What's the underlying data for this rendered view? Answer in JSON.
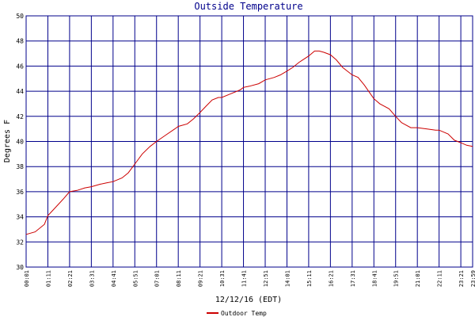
{
  "chart_data": {
    "type": "line",
    "title": "Outside Temperature",
    "xlabel": "12/12/16 (EDT)",
    "ylabel": "Degrees F",
    "ylim": [
      30,
      50
    ],
    "yticks": [
      30,
      32,
      34,
      36,
      38,
      40,
      42,
      44,
      46,
      48,
      50
    ],
    "xlim": [
      "00:01",
      "23:59"
    ],
    "xticks": [
      "00:01",
      "01:11",
      "02:21",
      "03:31",
      "04:41",
      "05:51",
      "07:01",
      "08:11",
      "09:21",
      "10:31",
      "11:41",
      "12:51",
      "14:01",
      "15:11",
      "16:21",
      "17:31",
      "18:41",
      "19:51",
      "21:01",
      "22:11",
      "23:21",
      "23:59"
    ],
    "grid": true,
    "legend": "bottom-center",
    "colors": {
      "grid": "#00008b",
      "series": "#cc0000",
      "title": "#00008b"
    },
    "series": [
      {
        "name": "Outdoor Temp",
        "x": [
          "00:01",
          "00:30",
          "01:00",
          "01:11",
          "01:30",
          "02:00",
          "02:21",
          "02:45",
          "03:10",
          "03:31",
          "04:00",
          "04:20",
          "04:41",
          "05:10",
          "05:30",
          "05:51",
          "06:15",
          "06:40",
          "07:01",
          "07:30",
          "08:00",
          "08:11",
          "08:40",
          "09:00",
          "09:21",
          "09:40",
          "10:00",
          "10:20",
          "10:31",
          "11:00",
          "11:30",
          "11:41",
          "12:00",
          "12:30",
          "12:51",
          "13:20",
          "13:40",
          "14:01",
          "14:20",
          "14:40",
          "15:11",
          "15:30",
          "15:45",
          "16:00",
          "16:21",
          "16:40",
          "17:00",
          "17:31",
          "17:50",
          "18:10",
          "18:41",
          "19:00",
          "19:30",
          "19:51",
          "20:10",
          "20:40",
          "21:01",
          "21:30",
          "22:00",
          "22:11",
          "22:40",
          "23:00",
          "23:21",
          "23:40",
          "23:59"
        ],
        "values": [
          32.6,
          32.8,
          33.4,
          34.1,
          34.6,
          35.4,
          36.0,
          36.1,
          36.3,
          36.4,
          36.6,
          36.7,
          36.8,
          37.1,
          37.5,
          38.2,
          39.0,
          39.6,
          40.0,
          40.5,
          41.0,
          41.2,
          41.4,
          41.8,
          42.3,
          42.8,
          43.3,
          43.5,
          43.5,
          43.8,
          44.1,
          44.3,
          44.4,
          44.6,
          44.9,
          45.1,
          45.3,
          45.6,
          45.9,
          46.3,
          46.8,
          47.2,
          47.2,
          47.1,
          46.9,
          46.5,
          45.9,
          45.3,
          45.1,
          44.5,
          43.4,
          43.0,
          42.6,
          42.0,
          41.5,
          41.1,
          41.1,
          41.0,
          40.9,
          40.9,
          40.6,
          40.1,
          39.9,
          39.7,
          39.6
        ]
      }
    ]
  }
}
